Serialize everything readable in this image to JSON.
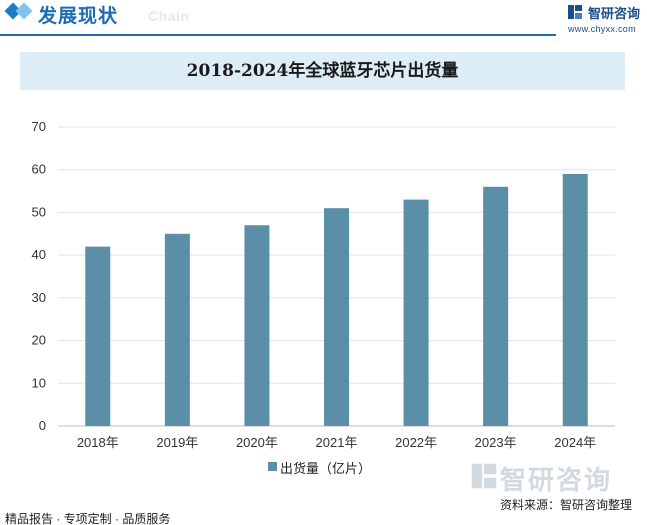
{
  "header": {
    "title": "发展现状",
    "subtitle": "Chain",
    "brand_name": "智研咨询",
    "brand_url": "www.chyxx.com"
  },
  "chart_data": {
    "type": "bar",
    "title": "2018-2024年全球蓝牙芯片出货量",
    "categories": [
      "2018年",
      "2019年",
      "2020年",
      "2021年",
      "2022年",
      "2023年",
      "2024年"
    ],
    "series": [
      {
        "name": "出货量（亿片）",
        "values": [
          42,
          45,
          47,
          51,
          53,
          56,
          59
        ]
      }
    ],
    "ylim": [
      0,
      70
    ],
    "yticks": [
      0,
      10,
      20,
      30,
      40,
      50,
      60,
      70
    ],
    "xlabel": "",
    "ylabel": "",
    "bar_color": "#5b8fa8",
    "legend_position": "bottom"
  },
  "footer": {
    "left": "精品报告 · 专项定制 · 品质服务",
    "source": "资料来源：智研咨询整理",
    "watermark": "智研咨询"
  }
}
